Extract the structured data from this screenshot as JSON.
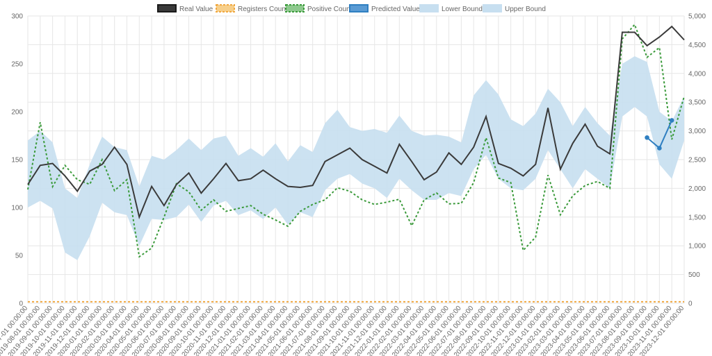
{
  "chart_data": {
    "type": "line",
    "legend_position": "top-center",
    "grid": true,
    "categories": [
      "2019-07-01 00:00:00",
      "2019-08-01 00:00:00",
      "2019-09-01 00:00:00",
      "2019-10-01 00:00:00",
      "2019-11-01 00:00:00",
      "2019-12-01 00:00:00",
      "2020-01-01 00:00:00",
      "2020-02-01 00:00:00",
      "2020-03-01 00:00:00",
      "2020-04-01 00:00:00",
      "2020-05-01 00:00:00",
      "2020-06-01 00:00:00",
      "2020-07-01 00:00:00",
      "2020-08-01 00:00:00",
      "2020-09-01 00:00:00",
      "2020-10-01 00:00:00",
      "2020-11-01 00:00:00",
      "2020-12-01 00:00:00",
      "2021-01-01 00:00:00",
      "2021-02-01 00:00:00",
      "2021-03-01 00:00:00",
      "2021-04-01 00:00:00",
      "2021-05-01 00:00:00",
      "2021-06-01 00:00:00",
      "2021-07-01 00:00:00",
      "2021-08-01 00:00:00",
      "2021-09-01 00:00:00",
      "2021-10-01 00:00:00",
      "2021-11-01 00:00:00",
      "2021-12-01 00:00:00",
      "2022-01-01 00:00:00",
      "2022-02-01 00:00:00",
      "2022-03-01 00:00:00",
      "2022-04-01 00:00:00",
      "2022-05-01 00:00:00",
      "2022-06-01 00:00:00",
      "2022-07-01 00:00:00",
      "2022-08-01 00:00:00",
      "2022-09-01 00:00:00",
      "2022-10-01 00:00:00",
      "2022-11-01 00:00:00",
      "2022-12-01 00:00:00",
      "2023-01-01 00:00:00",
      "2023-02-01 00:00:00",
      "2023-03-01 00:00:00",
      "2023-04-01 00:00:00",
      "2023-05-01 00:00:00",
      "2023-06-01 00:00:00",
      "2023-07-01 00:00:00",
      "2023-08-01 00:00:00",
      "2023-09-01 00:00:00",
      "2023-10-01 00:00:00",
      "2023-11-01 00:00:00",
      "2023-12-01 00:00:00"
    ],
    "y_left": {
      "range": [
        0,
        300
      ],
      "ticks": [
        "0",
        "50",
        "100",
        "150",
        "200",
        "250",
        "300"
      ]
    },
    "y_right": {
      "range": [
        0,
        5000
      ],
      "ticks": [
        "0",
        "500",
        "1,000",
        "1,500",
        "2,000",
        "2,500",
        "3,000",
        "3,500",
        "4,000",
        "4,500",
        "5,000"
      ]
    },
    "series": [
      {
        "name": "Real Value",
        "axis": "left",
        "style": "solid",
        "color": "#3a3a3a",
        "values": [
          124,
          144,
          146,
          133,
          117,
          138,
          145,
          163,
          145,
          90,
          122,
          102,
          124,
          136,
          115,
          130,
          146,
          128,
          130,
          139,
          130,
          122,
          121,
          123,
          148,
          155,
          162,
          150,
          143,
          136,
          166,
          148,
          129,
          137,
          157,
          145,
          163,
          195,
          146,
          141,
          133,
          145,
          204,
          140,
          167,
          187,
          164,
          156,
          283,
          283,
          269,
          278,
          289,
          275
        ]
      },
      {
        "name": "Registers Count",
        "axis": "left",
        "style": "dashed",
        "color": "#f0a840",
        "values": [
          1.5,
          1.5,
          1.5,
          1.5,
          1.5,
          1.5,
          1.5,
          1.5,
          1.5,
          1.5,
          1.5,
          1.5,
          1.5,
          1.5,
          1.5,
          1.5,
          1.5,
          1.5,
          1.5,
          1.5,
          1.5,
          1.5,
          1.5,
          1.5,
          1.5,
          1.5,
          1.5,
          1.5,
          1.5,
          1.5,
          1.5,
          1.5,
          1.5,
          1.5,
          1.5,
          1.5,
          1.5,
          1.5,
          1.5,
          1.5,
          1.5,
          1.5,
          1.5,
          1.5,
          1.5,
          1.5,
          1.5,
          1.5,
          1.5,
          1.5,
          1.5,
          1.5,
          1.5,
          1.5
        ]
      },
      {
        "name": "Positive Count",
        "axis": "right",
        "style": "dashed",
        "color": "#3a9a3a",
        "values": [
          1980,
          3150,
          2030,
          2400,
          2150,
          2070,
          2500,
          1960,
          2150,
          810,
          960,
          1500,
          2080,
          1940,
          1620,
          1800,
          1600,
          1650,
          1700,
          1550,
          1450,
          1340,
          1600,
          1720,
          1800,
          2010,
          1950,
          1800,
          1720,
          1760,
          1810,
          1350,
          1800,
          1920,
          1730,
          1740,
          2100,
          2880,
          2180,
          2100,
          920,
          1150,
          2230,
          1540,
          1870,
          2050,
          2120,
          2000,
          4600,
          4850,
          4280,
          4450,
          2850,
          3600
        ]
      },
      {
        "name": "Predicted Value",
        "axis": "left",
        "style": "solid-markers",
        "color": "#2f7fc1",
        "values": [
          null,
          null,
          null,
          null,
          null,
          null,
          null,
          null,
          null,
          null,
          null,
          null,
          null,
          null,
          null,
          null,
          null,
          null,
          null,
          null,
          null,
          null,
          null,
          null,
          null,
          null,
          null,
          null,
          null,
          null,
          null,
          null,
          null,
          null,
          null,
          null,
          null,
          null,
          null,
          null,
          null,
          null,
          null,
          null,
          null,
          null,
          null,
          null,
          null,
          null,
          173,
          162,
          191,
          null
        ]
      },
      {
        "name": "Lower Bound",
        "axis": "left",
        "style": "band-lower",
        "color": "#c7dff0",
        "values": [
          100,
          107,
          99,
          53,
          45,
          70,
          105,
          95,
          92,
          60,
          88,
          87,
          90,
          103,
          85,
          102,
          107,
          92,
          97,
          88,
          100,
          82,
          95,
          90,
          118,
          130,
          135,
          125,
          120,
          110,
          130,
          118,
          108,
          108,
          115,
          112,
          140,
          155,
          130,
          120,
          118,
          130,
          160,
          140,
          120,
          140,
          130,
          120,
          195,
          205,
          195,
          145,
          130,
          170
        ]
      },
      {
        "name": "Upper Bound",
        "axis": "left",
        "style": "band-upper",
        "color": "#c7dff0",
        "values": [
          170,
          180,
          168,
          120,
          110,
          145,
          174,
          163,
          160,
          122,
          154,
          150,
          160,
          172,
          160,
          172,
          175,
          154,
          162,
          153,
          167,
          148,
          165,
          158,
          188,
          202,
          184,
          180,
          182,
          178,
          196,
          180,
          175,
          176,
          174,
          168,
          217,
          233,
          218,
          192,
          185,
          198,
          224,
          210,
          185,
          205,
          188,
          175,
          250,
          258,
          252,
          200,
          190,
          216
        ]
      }
    ]
  }
}
